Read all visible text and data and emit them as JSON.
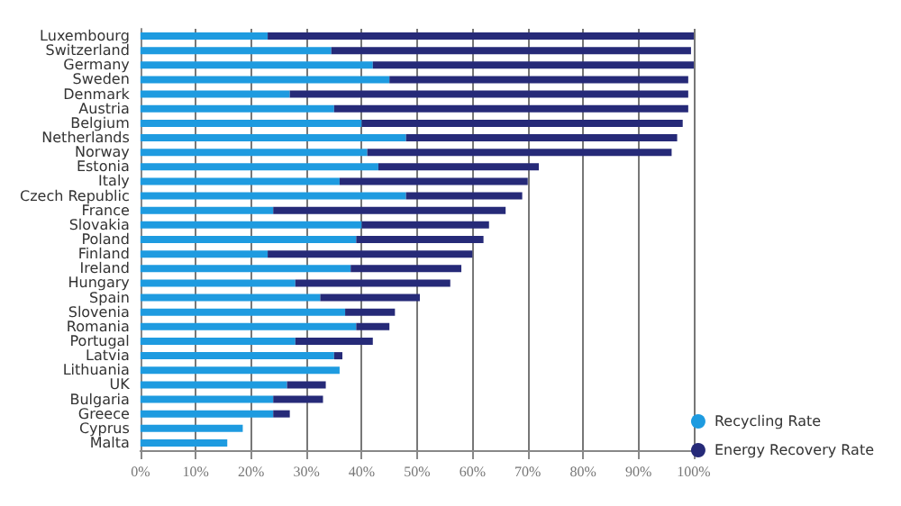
{
  "chart_data": {
    "type": "bar",
    "orientation": "horizontal",
    "stacked": true,
    "categories": [
      "Luxembourg",
      "Switzerland",
      "Germany",
      "Sweden",
      "Denmark",
      "Austria",
      "Belgium",
      "Netherlands",
      "Norway",
      "Estonia",
      "Italy",
      "Czech Republic",
      "France",
      "Slovakia",
      "Poland",
      "Finland",
      "Ireland",
      "Hungary",
      "Spain",
      "Slovenia",
      "Romania",
      "Portugal",
      "Latvia",
      "Lithuania",
      "UK",
      "Bulgaria",
      "Greece",
      "Cyprus",
      "Malta"
    ],
    "series": [
      {
        "name": "Recycling Rate",
        "color": "#1e9be0",
        "values": [
          23,
          34.5,
          42,
          45,
          27,
          35,
          40,
          48,
          41,
          43,
          36,
          48,
          24,
          40,
          39,
          23,
          38,
          28,
          32.5,
          37,
          39,
          28,
          35,
          36,
          26.5,
          24,
          24,
          18.5,
          15.7
        ]
      },
      {
        "name": "Energy Recovery Rate",
        "color": "#262a78",
        "values": [
          77,
          65,
          58,
          54,
          72,
          64,
          58,
          49,
          55,
          29,
          34,
          21,
          42,
          23,
          23,
          37,
          20,
          28,
          18,
          9,
          6,
          14,
          1.5,
          0,
          7,
          9,
          3,
          0,
          0
        ]
      }
    ],
    "xlim": [
      0,
      100
    ],
    "xticks": [
      {
        "value": 0,
        "label": "0%"
      },
      {
        "value": 10,
        "label": "10%"
      },
      {
        "value": 20,
        "label": "20%"
      },
      {
        "value": 30,
        "label": "30%"
      },
      {
        "value": 40,
        "label": "40%"
      },
      {
        "value": 50,
        "label": "50%"
      },
      {
        "value": 60,
        "label": "60%"
      },
      {
        "value": 70,
        "label": "70%"
      },
      {
        "value": 80,
        "label": "80%"
      },
      {
        "value": 90,
        "label": "90%"
      },
      {
        "value": 100,
        "label": "100%"
      }
    ],
    "grid": "x",
    "legend": "bottom right"
  }
}
